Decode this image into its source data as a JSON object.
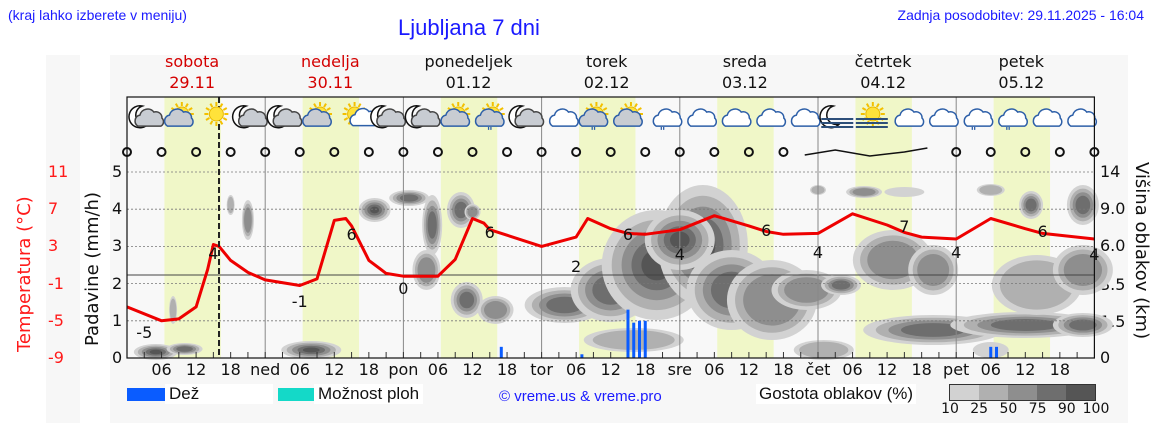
{
  "header": {
    "hint": "(kraj lahko izberete v meniju)",
    "title": "Ljubljana 7 dni",
    "last_update": "Zadnja posodobitev: 29.11.2025 - 16:04"
  },
  "days": [
    {
      "name": "sobota",
      "date": "29.11",
      "weekend": true
    },
    {
      "name": "nedelja",
      "date": "30.11",
      "weekend": true
    },
    {
      "name": "ponedeljek",
      "date": "01.12",
      "weekend": false
    },
    {
      "name": "torek",
      "date": "02.12",
      "weekend": false
    },
    {
      "name": "sreda",
      "date": "03.12",
      "weekend": false
    },
    {
      "name": "četrtek",
      "date": "04.12",
      "weekend": false
    },
    {
      "name": "petek",
      "date": "05.12",
      "weekend": false
    }
  ],
  "axes": {
    "temp_label": "Temperatura (°C)",
    "temp_ticks": [
      "11",
      "7",
      "3",
      "-1",
      "-5",
      "-9"
    ],
    "precip_label": "Padavine (mm/h)",
    "precip_ticks": [
      "5",
      "4",
      "3",
      "2",
      "1",
      "0"
    ],
    "cloud_label": "Višina oblakov (km)",
    "cloud_ticks": [
      "14",
      "9.0",
      "6.0",
      "3.5",
      "1.5",
      "0"
    ],
    "x_ticks": [
      "06",
      "12",
      "18",
      "ned",
      "06",
      "12",
      "18",
      "pon",
      "06",
      "12",
      "18",
      "tor",
      "06",
      "12",
      "18",
      "sre",
      "06",
      "12",
      "18",
      "čet",
      "06",
      "12",
      "18",
      "pet",
      "06",
      "12",
      "18"
    ]
  },
  "legend": {
    "rain_label": "Dež",
    "rain_color": "#0a5cff",
    "showers_label": "Možnost ploh",
    "showers_color": "#14d9c8",
    "copyright": "© vreme.us & vreme.pro",
    "density_title": "Gostota oblakov (%)",
    "density_levels": [
      "10",
      "25",
      "50",
      "75",
      "90",
      "100"
    ],
    "density_colors": [
      "#d2d2d2",
      "#b0b0b0",
      "#8e8e8e",
      "#6e6e6e",
      "#555555"
    ]
  },
  "icons": [
    "moon-cloud",
    "sun-cloud",
    "sun",
    "moon-cloud",
    "moon-cloud",
    "sun-cloud",
    "sun-small-cloud",
    "moon-cloud",
    "moon-cloud",
    "sun-cloud",
    "sun-cloud-rain",
    "moon-cloud",
    "cloud",
    "sun-cloud-rain",
    "sun-cloud",
    "cloud-rain",
    "cloud",
    "cloud",
    "cloud",
    "cloud",
    "moon-fog",
    "sun-fog",
    "cloud",
    "cloud",
    "cloud-rain",
    "cloud-rain",
    "cloud",
    "cloud"
  ],
  "chart_data": {
    "type": "line",
    "title": "Ljubljana 7 dni",
    "xlabel": "",
    "ylabel": "Temperatura (°C)",
    "ylim_temperature": [
      -9,
      11
    ],
    "ylim_precipitation": [
      0,
      5
    ],
    "cloud_height_ticks_km": [
      0,
      1.5,
      3.5,
      6.0,
      9.0,
      14
    ],
    "now_marker": "29.11 16:04",
    "temperature_series": {
      "name": "Temperatura",
      "color": "#ee0000",
      "x_hours": [
        0,
        6,
        9,
        12,
        14,
        15,
        16,
        18,
        21,
        24,
        30,
        33,
        36,
        38,
        39,
        42,
        45,
        48,
        54,
        57,
        60,
        62,
        63,
        66,
        72,
        78,
        80,
        84,
        87,
        90,
        96,
        102,
        108,
        111,
        114,
        120,
        126,
        132,
        135,
        138,
        144,
        150,
        156,
        159,
        162,
        168
      ],
      "values": [
        -3.5,
        -5,
        -4.8,
        -3.5,
        0.5,
        3.2,
        3.0,
        1.5,
        0.2,
        -0.6,
        -1.2,
        -0.5,
        5.8,
        6.0,
        5.2,
        1.5,
        0.1,
        -0.2,
        -0.2,
        1.6,
        6.0,
        5.5,
        4.8,
        4.2,
        3.0,
        4.0,
        6.0,
        4.9,
        4.4,
        4.3,
        4.8,
        6.3,
        5.2,
        4.6,
        4.3,
        4.4,
        6.5,
        5.3,
        4.5,
        4.0,
        3.8,
        6.0,
        4.9,
        4.4,
        4.2,
        3.8
      ],
      "labels": [
        {
          "hour": 3,
          "value": "-5"
        },
        {
          "hour": 15,
          "value": "4"
        },
        {
          "hour": 30,
          "value": "-1"
        },
        {
          "hour": 39,
          "value": "6"
        },
        {
          "hour": 48,
          "value": "0"
        },
        {
          "hour": 63,
          "value": "6"
        },
        {
          "hour": 78,
          "value": "2"
        },
        {
          "hour": 87,
          "value": "6"
        },
        {
          "hour": 96,
          "value": "4"
        },
        {
          "hour": 111,
          "value": "6"
        },
        {
          "hour": 120,
          "value": "4"
        },
        {
          "hour": 135,
          "value": "7"
        },
        {
          "hour": 144,
          "value": "4"
        },
        {
          "hour": 159,
          "value": "6"
        },
        {
          "hour": 168,
          "value": "4"
        }
      ]
    },
    "precipitation_series": {
      "name": "Dež",
      "unit": "mm/h",
      "x_hours": [
        65,
        79,
        87,
        88,
        89,
        90,
        150,
        151
      ],
      "values": [
        0.3,
        0.1,
        1.3,
        0.95,
        1.0,
        1.0,
        0.3,
        0.3
      ]
    },
    "showers_series": {
      "name": "Možnost ploh",
      "values": []
    }
  }
}
